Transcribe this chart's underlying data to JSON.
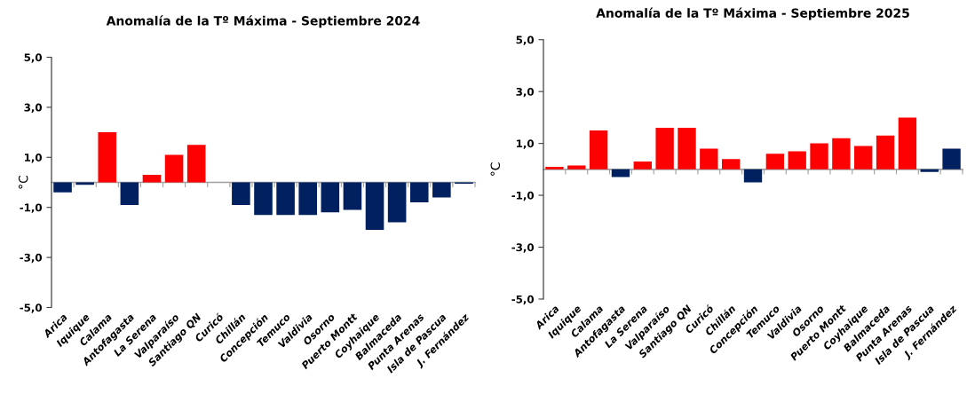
{
  "chart_data": [
    {
      "type": "bar",
      "title": "Anomalía de la Tº Máxima - Septiembre 2024",
      "ylabel": "°C",
      "categories": [
        "Arica",
        "Iquique",
        "Calama",
        "Antofagasta",
        "La Serena",
        "Valparaíso",
        "Santiago QN",
        "Curicó",
        "Chillán",
        "Concepción",
        "Temuco",
        "Valdivia",
        "Osorno",
        "Puerto Montt",
        "Coyhaique",
        "Balmaceda",
        "Punta Arenas",
        "Isla de Pascua",
        "J. Fernández"
      ],
      "values": [
        -0.4,
        -0.1,
        2.0,
        -0.9,
        0.3,
        1.1,
        1.5,
        null,
        -0.9,
        -1.3,
        -1.3,
        -1.3,
        -1.2,
        -1.1,
        -1.9,
        -1.6,
        -0.8,
        -0.6,
        -0.05
      ],
      "colors": [
        "#002060",
        "#002060",
        "#ff0000",
        "#002060",
        "#ff0000",
        "#ff0000",
        "#ff0000",
        "#002060",
        "#002060",
        "#002060",
        "#002060",
        "#002060",
        "#002060",
        "#002060",
        "#002060",
        "#002060",
        "#002060",
        "#002060",
        "#002060"
      ],
      "ylim": [
        -5,
        5
      ],
      "yticks": [
        {
          "value": 5,
          "label": "5,0"
        },
        {
          "value": 3,
          "label": "3,0"
        },
        {
          "value": 1,
          "label": "1,0"
        },
        {
          "value": -1,
          "label": "-1,0"
        },
        {
          "value": -3,
          "label": "-3,0"
        },
        {
          "value": -5,
          "label": "-5,0"
        }
      ]
    },
    {
      "type": "bar",
      "title": "Anomalía de la Tº Máxima - Septiembre 2025",
      "ylabel": "°C",
      "categories": [
        "Arica",
        "Iquique",
        "Calama",
        "Antofagasta",
        "La Serena",
        "Valparaíso",
        "Santiago QN",
        "Curicó",
        "Chillán",
        "Concepción",
        "Temuco",
        "Valdivia",
        "Osorno",
        "Puerto Montt",
        "Coyhaique",
        "Balmaceda",
        "Punta Arenas",
        "Isla de Pascua",
        "J. Fernández"
      ],
      "values": [
        0.1,
        0.15,
        1.5,
        -0.3,
        0.3,
        1.6,
        1.6,
        0.8,
        0.4,
        -0.5,
        0.6,
        0.7,
        1.0,
        1.2,
        0.9,
        1.3,
        2.0,
        -0.1,
        0.8
      ],
      "colors": [
        "#ff0000",
        "#ff0000",
        "#ff0000",
        "#002060",
        "#ff0000",
        "#ff0000",
        "#ff0000",
        "#ff0000",
        "#ff0000",
        "#002060",
        "#ff0000",
        "#ff0000",
        "#ff0000",
        "#ff0000",
        "#ff0000",
        "#ff0000",
        "#ff0000",
        "#002060",
        "#002060"
      ],
      "ylim": [
        -5,
        5
      ],
      "yticks": [
        {
          "value": 5,
          "label": "5,0"
        },
        {
          "value": 3,
          "label": "3,0"
        },
        {
          "value": 1,
          "label": "1,0"
        },
        {
          "value": -1,
          "label": "-1,0"
        },
        {
          "value": -3,
          "label": "-3,0"
        },
        {
          "value": -5,
          "label": "-5,0"
        }
      ]
    }
  ]
}
